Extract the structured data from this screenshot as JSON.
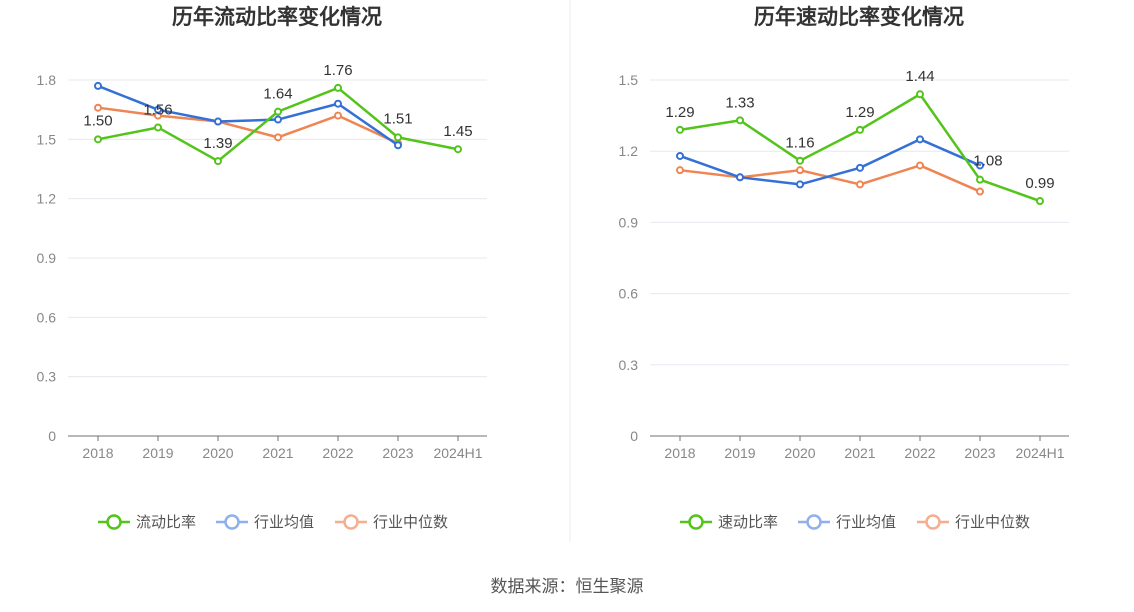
{
  "source": "数据来源：恒生聚源",
  "chart_data": [
    {
      "type": "line",
      "title": "历年流动比率变化情况",
      "categories": [
        "2018",
        "2019",
        "2020",
        "2021",
        "2022",
        "2023",
        "2024H1"
      ],
      "ylim": [
        0,
        1.8
      ],
      "yticks": [
        0,
        0.3,
        0.6,
        0.9,
        1.2,
        1.5,
        1.8
      ],
      "ytick_labels": [
        "0",
        "0.3",
        "0.6",
        "0.9",
        "1.2",
        "1.5",
        "1.8"
      ],
      "grid": true,
      "legend_position": "bottom",
      "series": [
        {
          "name": "流动比率",
          "color": "#52c41a",
          "values": [
            1.5,
            1.56,
            1.39,
            1.64,
            1.76,
            1.51,
            1.45
          ],
          "labels": [
            "1.50",
            "1.56",
            "1.39",
            "1.64",
            "1.76",
            "1.51",
            "1.45"
          ]
        },
        {
          "name": "行业均值",
          "color": "#3470d6",
          "values": [
            1.77,
            1.65,
            1.59,
            1.6,
            1.68,
            1.47,
            null
          ]
        },
        {
          "name": "行业中位数",
          "color": "#ee8552",
          "values": [
            1.66,
            1.62,
            1.59,
            1.51,
            1.62,
            1.48,
            null
          ]
        }
      ]
    },
    {
      "type": "line",
      "title": "历年速动比率变化情况",
      "categories": [
        "2018",
        "2019",
        "2020",
        "2021",
        "2022",
        "2023",
        "2024H1"
      ],
      "ylim": [
        0,
        1.5
      ],
      "yticks": [
        0,
        0.3,
        0.6,
        0.9,
        1.2,
        1.5
      ],
      "ytick_labels": [
        "0",
        "0.3",
        "0.6",
        "0.9",
        "1.2",
        "1.5"
      ],
      "grid": true,
      "legend_position": "bottom",
      "series": [
        {
          "name": "速动比率",
          "color": "#52c41a",
          "values": [
            1.29,
            1.33,
            1.16,
            1.29,
            1.44,
            1.08,
            0.99
          ],
          "labels": [
            "1.29",
            "1.33",
            "1.16",
            "1.29",
            "1.44",
            "1.08",
            "0.99"
          ]
        },
        {
          "name": "行业均值",
          "color": "#3470d6",
          "values": [
            1.18,
            1.09,
            1.06,
            1.13,
            1.25,
            1.14,
            null
          ]
        },
        {
          "name": "行业中位数",
          "color": "#ee8552",
          "values": [
            1.12,
            1.09,
            1.12,
            1.06,
            1.14,
            1.03,
            null
          ]
        }
      ]
    }
  ]
}
